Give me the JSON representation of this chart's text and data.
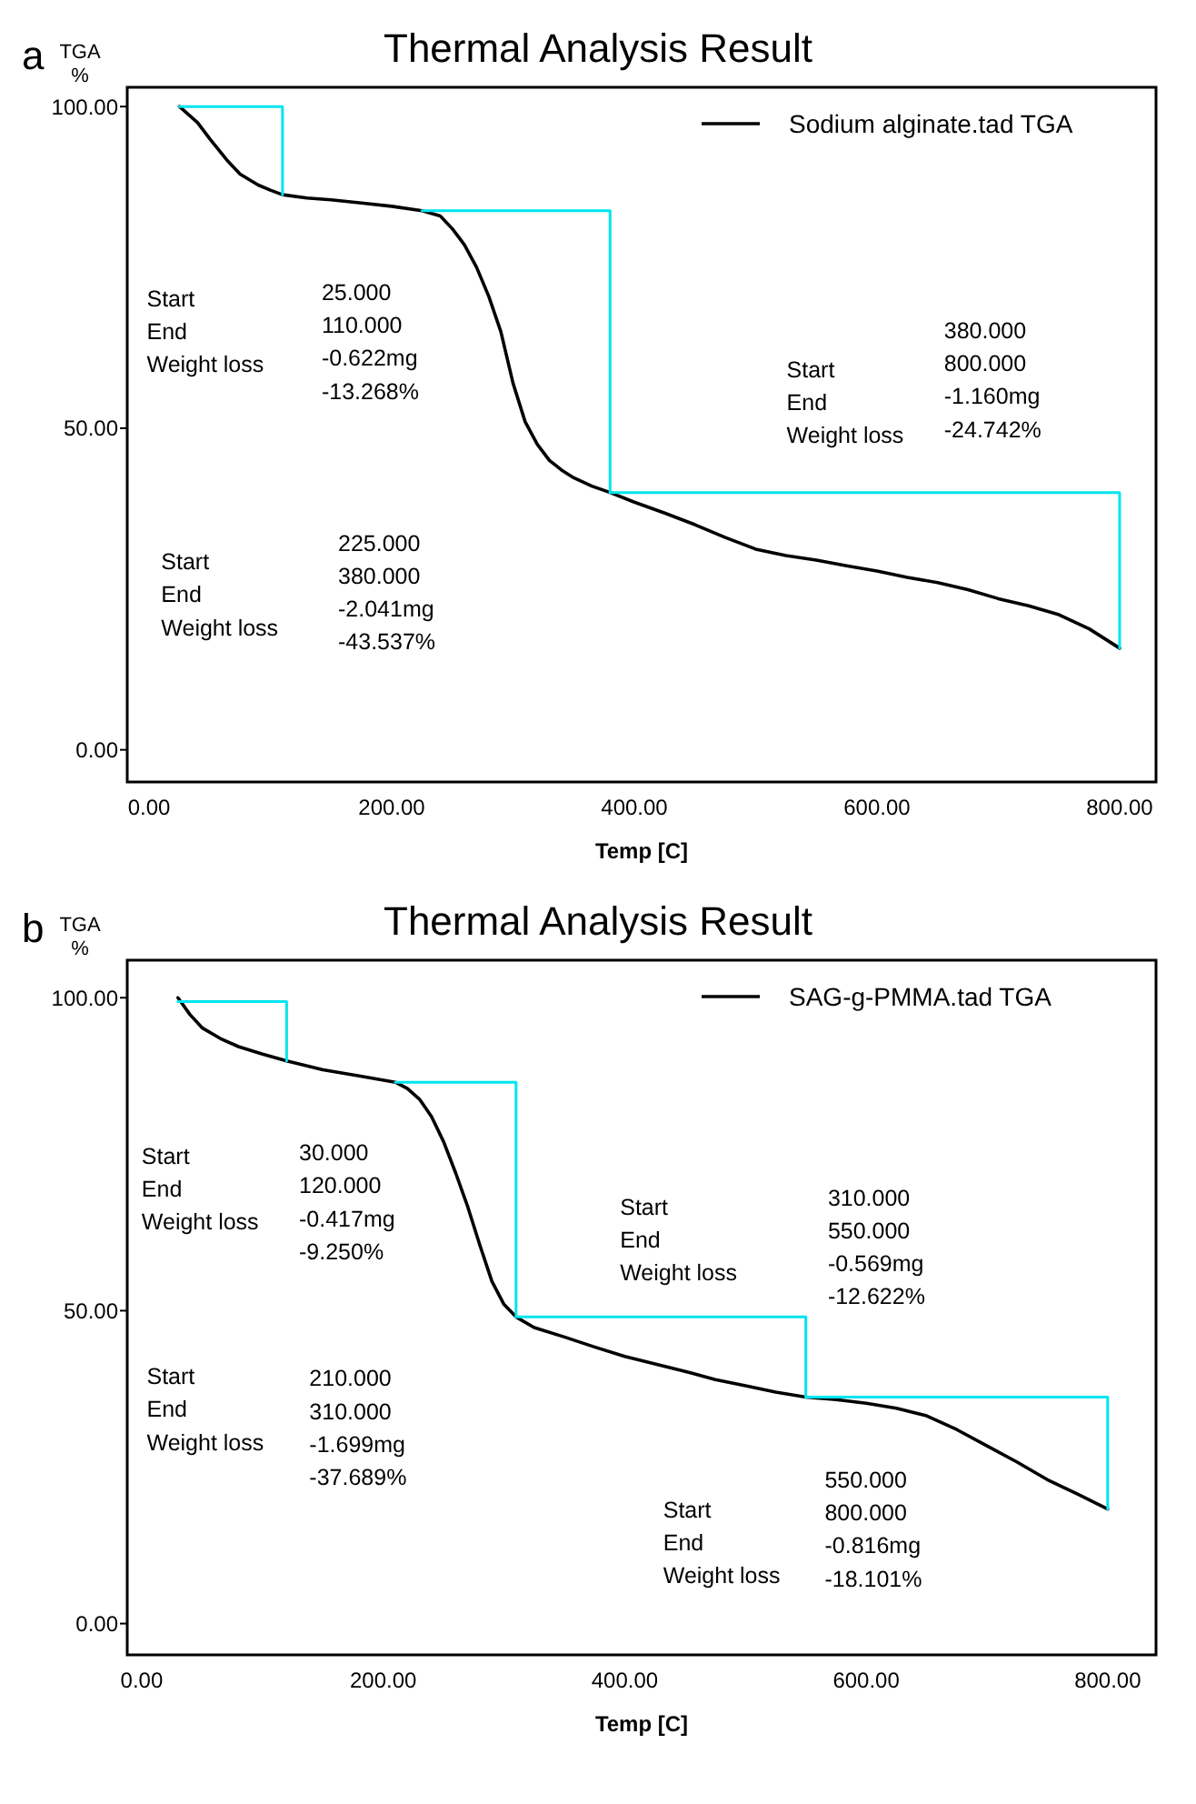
{
  "chart_data": [
    {
      "type": "line",
      "title": "Thermal Analysis Result",
      "xlabel": "Temp [C]",
      "ylabel": "TGA\n%",
      "xlim": [
        -18,
        830
      ],
      "ylim": [
        -5,
        103
      ],
      "xticks": [
        {
          "value": 0,
          "label": "0.00"
        },
        {
          "value": 200,
          "label": "200.00"
        },
        {
          "value": 400,
          "label": "400.00"
        },
        {
          "value": 600,
          "label": "600.00"
        },
        {
          "value": 800,
          "label": "800.00"
        }
      ],
      "yticks": [
        {
          "value": 0,
          "label": "0.00"
        },
        {
          "value": 50,
          "label": "50.00"
        },
        {
          "value": 100,
          "label": "100.00"
        }
      ],
      "grid": false,
      "legend": "top right",
      "marker": "none",
      "line_style": "solid",
      "series": [
        {
          "name": "Sodium alginate.tad TGA",
          "color": "#000000",
          "x": [
            25,
            40,
            50,
            65,
            75,
            90,
            100,
            110,
            130,
            150,
            175,
            200,
            225,
            240,
            250,
            260,
            270,
            280,
            290,
            300,
            310,
            320,
            330,
            340,
            350,
            365,
            380,
            400,
            425,
            450,
            475,
            500,
            525,
            550,
            575,
            600,
            625,
            650,
            675,
            700,
            725,
            750,
            775,
            800
          ],
          "values": [
            100,
            97.5,
            95,
            91.5,
            89.5,
            87.8,
            87,
            86.3,
            85.8,
            85.5,
            85,
            84.5,
            83.8,
            83,
            81,
            78.5,
            75,
            70.5,
            65,
            57,
            51,
            47.5,
            45,
            43.5,
            42.3,
            41,
            40,
            38.5,
            36.8,
            35,
            33,
            31.2,
            30.2,
            29.5,
            28.6,
            27.8,
            26.8,
            26,
            24.9,
            23.5,
            22.4,
            21,
            18.8,
            15.8
          ]
        },
        {
          "color": "#00e5ee",
          "x": [
            25,
            110,
            110
          ],
          "values": [
            100,
            100,
            86.3
          ]
        },
        {
          "color": "#00e5ee",
          "x": [
            225,
            380,
            380
          ],
          "values": [
            83.8,
            83.8,
            40
          ]
        },
        {
          "color": "#00e5ee",
          "x": [
            380,
            800,
            800
          ],
          "values": [
            40,
            40,
            15.8
          ]
        }
      ],
      "annotations": [
        "a",
        "Start\nEnd\nWeight loss",
        "25.000\n110.000\n-0.622mg\n-13.268%",
        "Start\nEnd\nWeight loss",
        "380.000\n800.000\n-1.160mg\n-24.742%",
        "Start\nEnd\nWeight loss",
        "225.000\n380.000\n-2.041mg\n-43.537%"
      ]
    },
    {
      "type": "line",
      "title": "Thermal Analysis Result",
      "xlabel": "Temp [C]",
      "ylabel": "TGA\n%",
      "xlim": [
        -12,
        840
      ],
      "ylim": [
        -5,
        106
      ],
      "xticks": [
        {
          "value": 0,
          "label": "0.00"
        },
        {
          "value": 200,
          "label": "200.00"
        },
        {
          "value": 400,
          "label": "400.00"
        },
        {
          "value": 600,
          "label": "600.00"
        },
        {
          "value": 800,
          "label": "800.00"
        }
      ],
      "yticks": [
        {
          "value": 0,
          "label": "0.00"
        },
        {
          "value": 50,
          "label": "50.00"
        },
        {
          "value": 100,
          "label": "100.00"
        }
      ],
      "grid": false,
      "legend": "top right",
      "marker": "none",
      "line_style": "solid",
      "series": [
        {
          "name": "SAG-g-PMMA.tad TGA",
          "color": "#000000",
          "x": [
            30,
            40,
            50,
            65,
            80,
            100,
            120,
            150,
            180,
            210,
            220,
            230,
            240,
            250,
            260,
            270,
            280,
            290,
            300,
            310,
            325,
            350,
            375,
            400,
            425,
            450,
            475,
            500,
            525,
            550,
            575,
            600,
            625,
            650,
            675,
            700,
            725,
            750,
            775,
            800
          ],
          "values": [
            100,
            97.3,
            95.2,
            93.5,
            92.2,
            91,
            89.9,
            88.5,
            87.5,
            86.5,
            85.5,
            83.8,
            81,
            77,
            72,
            66.6,
            60.5,
            54.7,
            51,
            49,
            47.3,
            45.8,
            44.2,
            42.7,
            41.5,
            40.3,
            39,
            38,
            37,
            36.2,
            35.8,
            35.2,
            34.4,
            33.2,
            31,
            28.4,
            25.8,
            23,
            20.7,
            18.3
          ]
        },
        {
          "color": "#00e5ee",
          "x": [
            30,
            120,
            120
          ],
          "values": [
            99.4,
            99.4,
            89.9
          ]
        },
        {
          "color": "#00e5ee",
          "x": [
            210,
            310,
            310
          ],
          "values": [
            86.5,
            86.5,
            49
          ]
        },
        {
          "color": "#00e5ee",
          "x": [
            310,
            550,
            550
          ],
          "values": [
            49,
            49,
            36.2
          ]
        },
        {
          "color": "#00e5ee",
          "x": [
            550,
            800,
            800
          ],
          "values": [
            36.2,
            36.2,
            18.3
          ]
        }
      ],
      "annotations": [
        "b",
        "Start\nEnd\nWeight loss",
        "30.000\n120.000\n-0.417mg\n-9.250%",
        "Start\nEnd\nWeight loss",
        "310.000\n550.000\n-0.569mg\n-12.622%",
        "Start\nEnd\nWeight loss",
        "210.000\n310.000\n-1.699mg\n-37.689%",
        "Start\nEnd\nWeight loss",
        "550.000\n800.000\n-0.816mg\n-18.101%"
      ]
    }
  ]
}
